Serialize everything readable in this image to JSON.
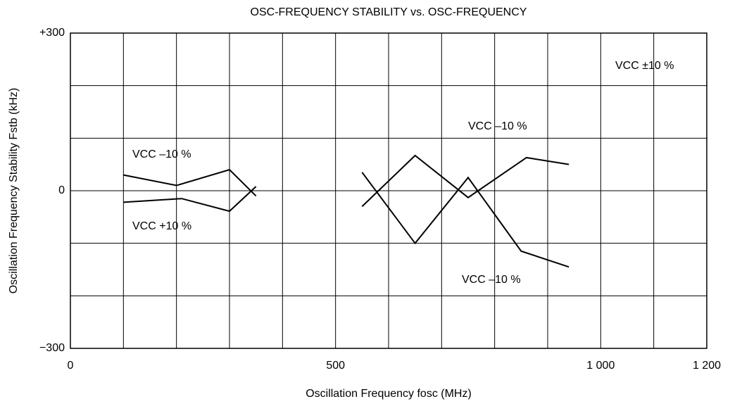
{
  "chart_data": {
    "type": "line",
    "title": "OSC-FREQUENCY STABILITY vs. OSC-FREQUENCY",
    "x_label": "Oscillation Frequency  fosc (MHz)",
    "y_label": "Oscillation Frequency Stability  Fstb (kHz)",
    "xlim": [
      0,
      1200
    ],
    "ylim": [
      -300,
      300
    ],
    "xticks": [
      0,
      500,
      {
        "value": 1000,
        "label": "1 000"
      },
      {
        "value": 1200,
        "label": "1 200"
      }
    ],
    "yticks": [
      {
        "value": 300,
        "label": "+300"
      },
      0,
      {
        "value": -300,
        "label": "−300"
      }
    ],
    "xgrid": [
      100,
      200,
      300,
      400,
      500,
      600,
      700,
      800,
      900,
      1000,
      1100
    ],
    "ygrid": [
      200,
      100,
      0,
      -100,
      -200
    ],
    "grid": true,
    "series": [
      {
        "color": "#000000",
        "x": [
          100,
          200,
          300,
          350
        ],
        "values": [
          30,
          10,
          40,
          -10
        ]
      },
      {
        "color": "#000000",
        "x": [
          100,
          210,
          300,
          350
        ],
        "values": [
          -22,
          -15,
          -39,
          8
        ]
      },
      {
        "color": "#000000",
        "x": [
          550,
          650,
          750,
          850,
          940
        ],
        "values": [
          35,
          -100,
          25,
          -115,
          -145
        ]
      },
      {
        "color": "#000000",
        "x": [
          550,
          650,
          750,
          860,
          940
        ],
        "values": [
          -30,
          67,
          -13,
          63,
          50
        ]
      }
    ],
    "annotations": [
      "VCC –10 %",
      "VCC +10 %",
      "VCC –10 %",
      "VCC –10 %",
      "VCC ±10 %"
    ]
  }
}
